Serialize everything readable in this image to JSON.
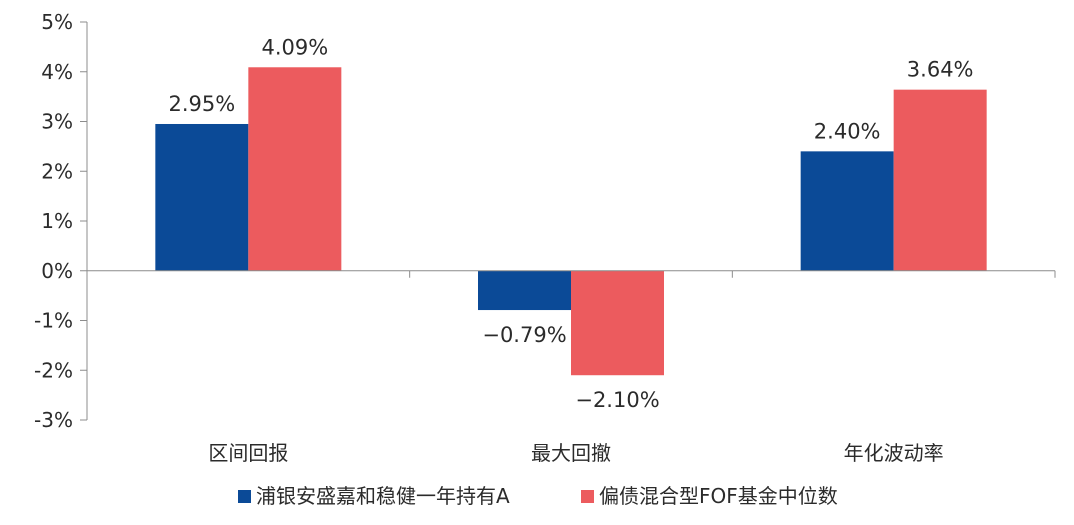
{
  "chart_data": {
    "type": "bar",
    "categories": [
      "区间回报",
      "最大回撤",
      "年化波动率"
    ],
    "series": [
      {
        "name": "浦银安盛嘉和稳健一年持有A",
        "values": [
          2.95,
          -0.79,
          2.4
        ],
        "labels": [
          "2.95%",
          "−0.79%",
          "2.40%"
        ],
        "color": "#0b4a97"
      },
      {
        "name": "偏债混合型FOF基金中位数",
        "values": [
          4.09,
          -2.1,
          3.64
        ],
        "labels": [
          "4.09%",
          "−2.10%",
          "3.64%"
        ],
        "color": "#ec5b5e"
      }
    ],
    "ylim": [
      -3,
      5
    ],
    "yticks": [
      5,
      4,
      3,
      2,
      1,
      0,
      -1,
      -2,
      -3
    ],
    "ytick_labels": [
      "5%",
      "4%",
      "3%",
      "2%",
      "1%",
      "0%",
      "-1%",
      "-2%",
      "-3%"
    ],
    "title": "",
    "xlabel": "",
    "ylabel": "",
    "grid": false,
    "legend_position": "bottom"
  }
}
